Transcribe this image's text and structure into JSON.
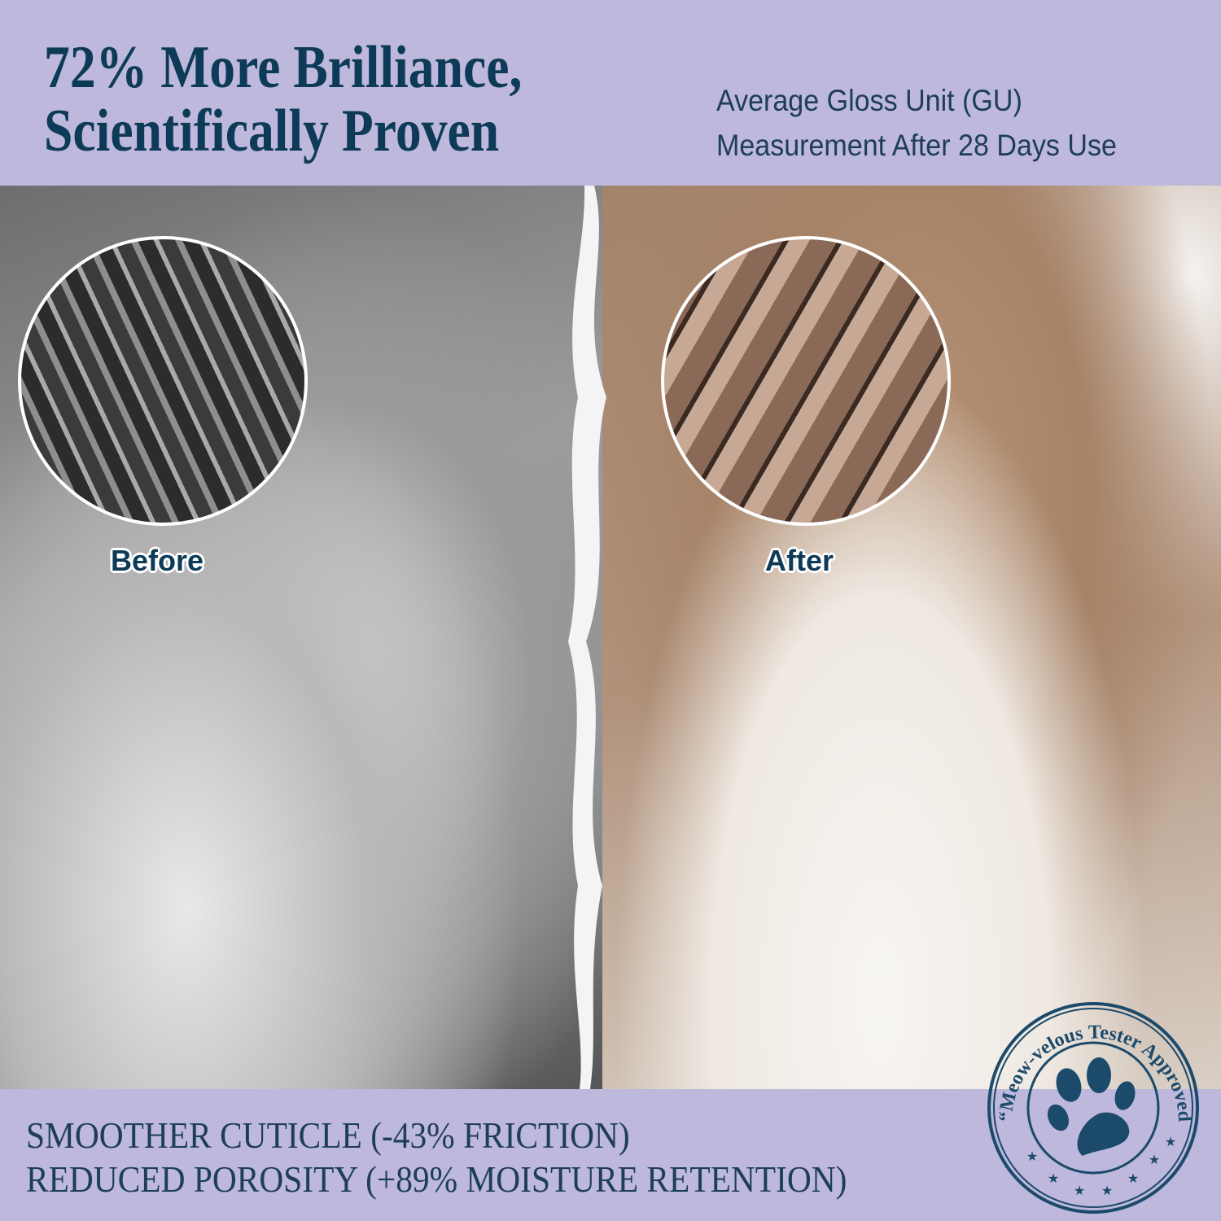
{
  "header": {
    "headline_line1": "72% More Brilliance,",
    "headline_line2": "Scientifically Proven",
    "subtitle_line1": "Average Gloss Unit (GU)",
    "subtitle_line2": "Measurement After 28 Days Use"
  },
  "comparison": {
    "before_label": "Before",
    "after_label": "After"
  },
  "claims": [
    "SMOOTHER CUTICLE (-43% FRICTION)",
    "REDUCED POROSITY (+89% MOISTURE RETENTION)"
  ],
  "stamp": {
    "text": "“Meow-velous Tester Approved”",
    "icon": "paw-print-icon",
    "stars": 7
  },
  "colors": {
    "background": "#bdb8dc",
    "navy": "#0d3a57"
  }
}
